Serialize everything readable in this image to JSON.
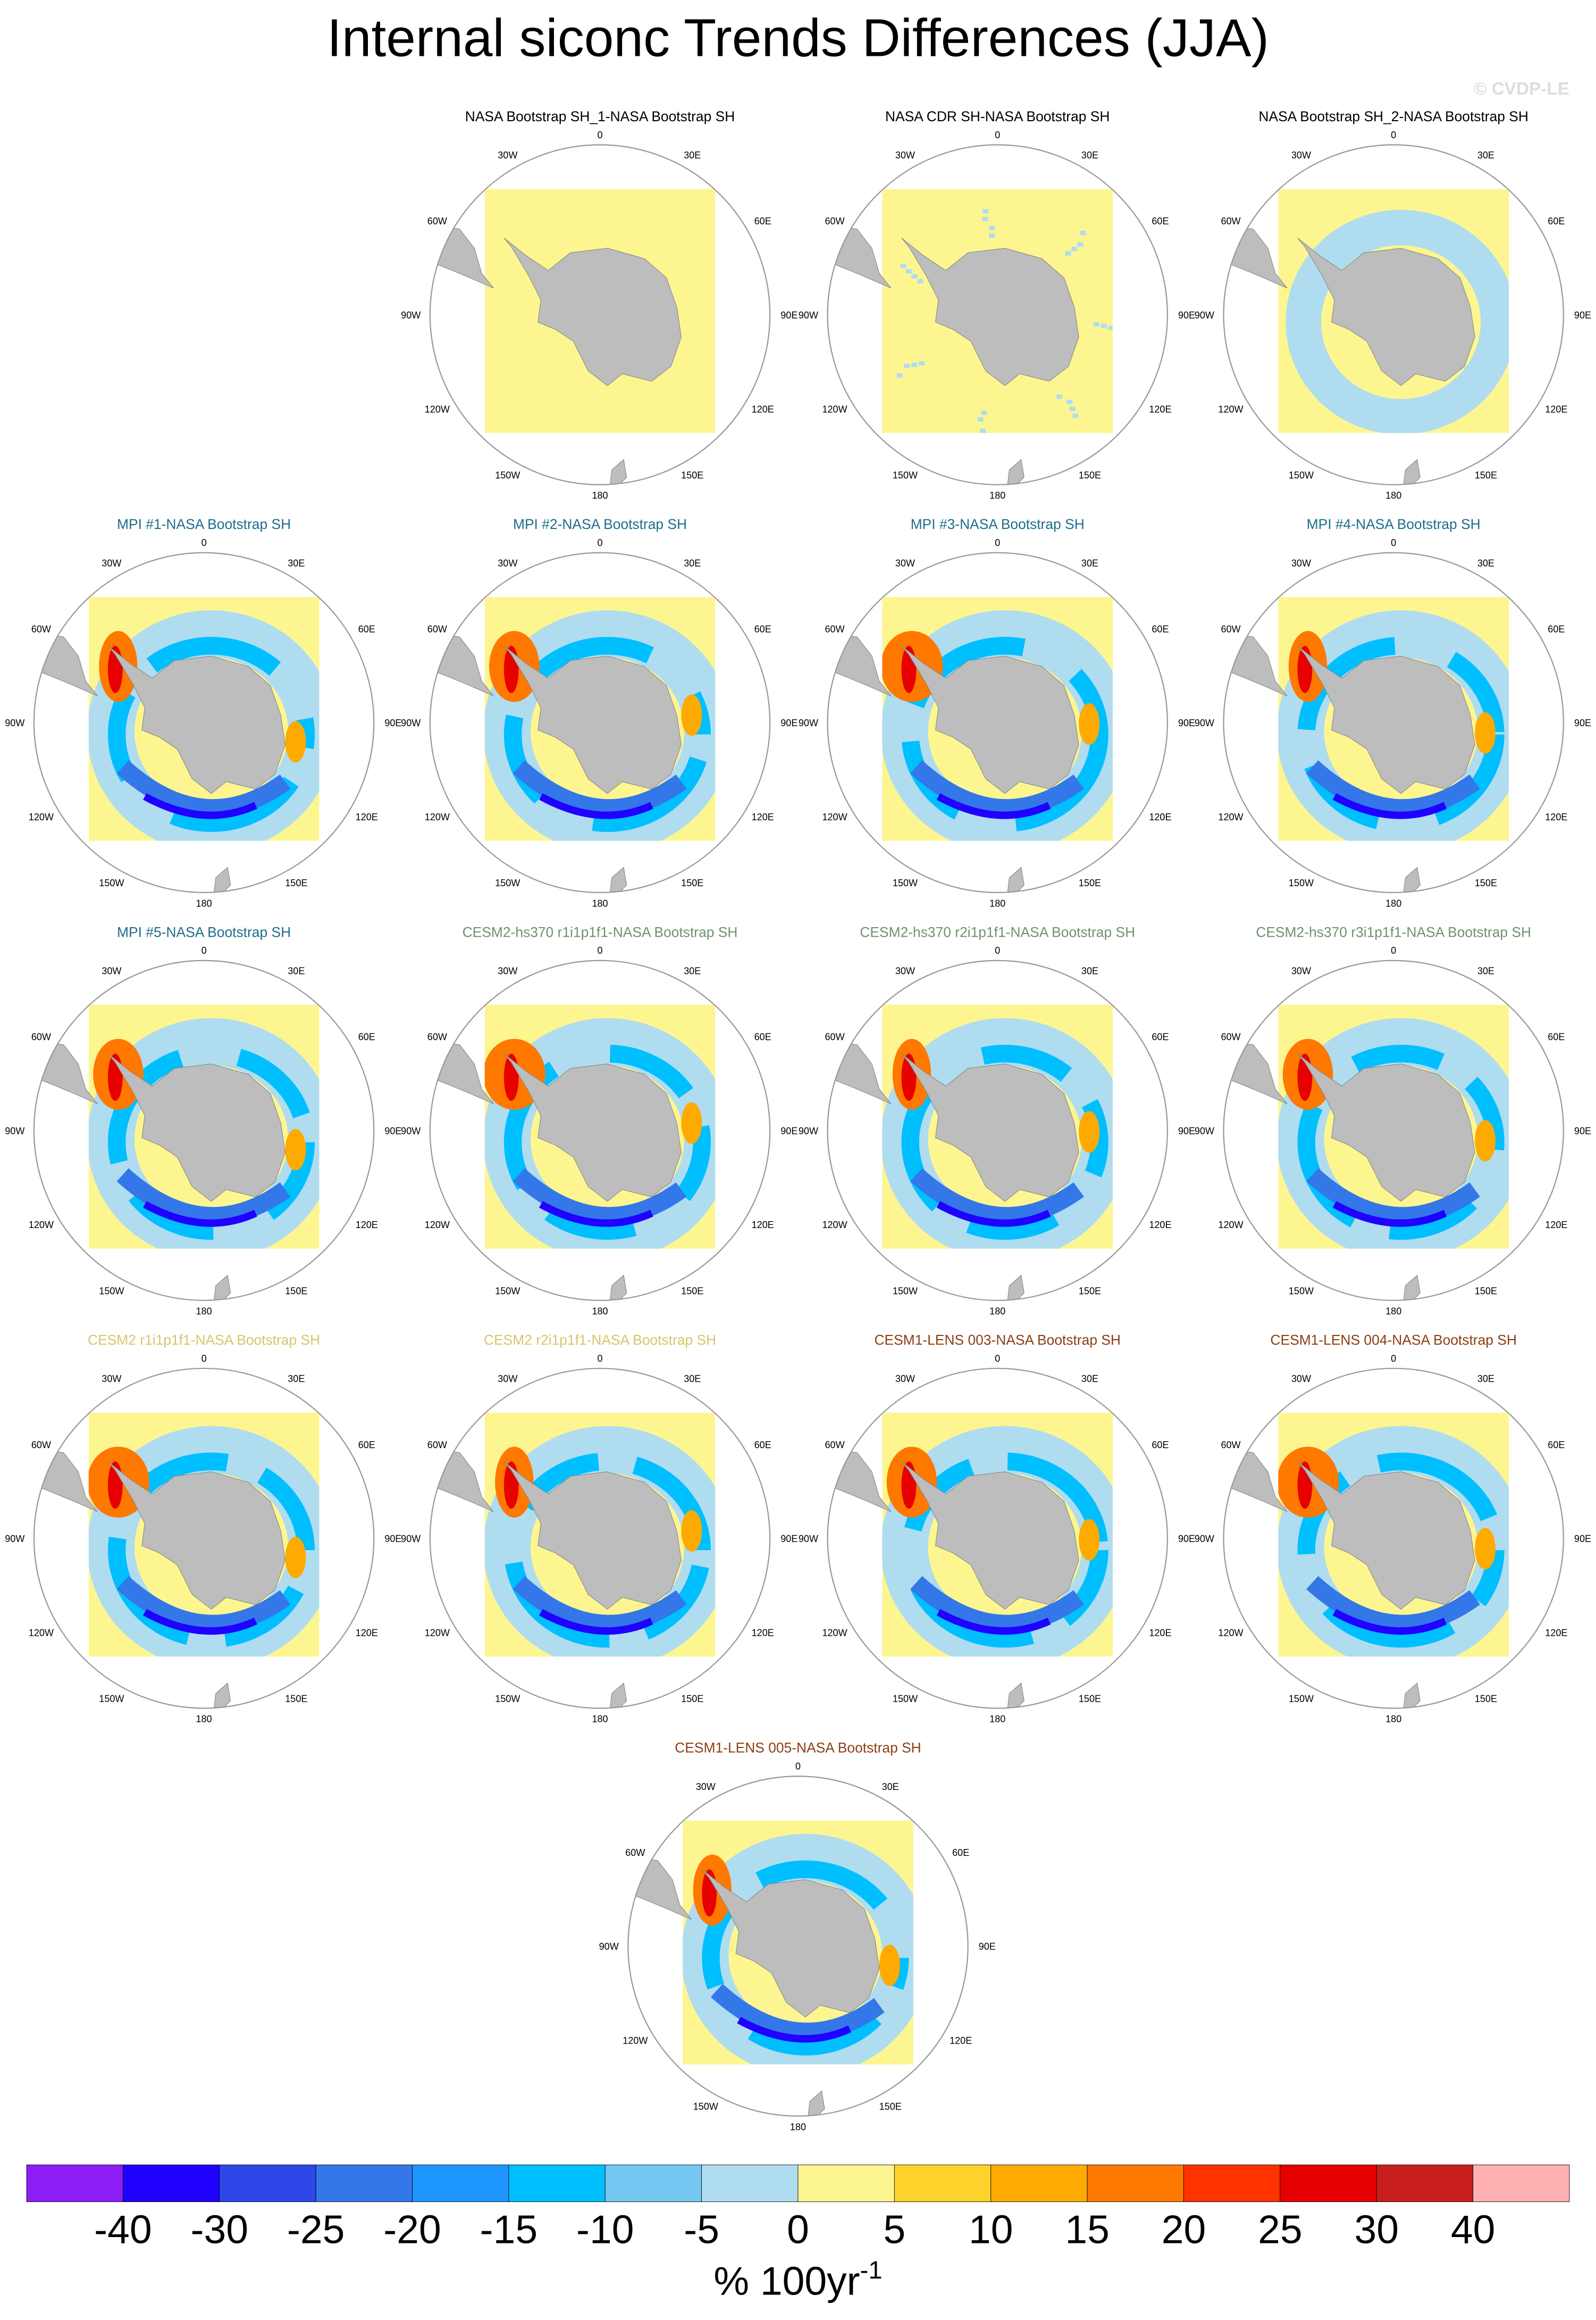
{
  "title": "Internal siconc Trends Differences (JJA)",
  "watermark": "© CVDP-LE",
  "panels": [
    {
      "title": "NASA Bootstrap SH_1-NASA Bootstrap SH",
      "title_color": "#000000"
    },
    {
      "title": "NASA CDR SH-NASA Bootstrap SH",
      "title_color": "#000000"
    },
    {
      "title": "NASA Bootstrap SH_2-NASA Bootstrap SH",
      "title_color": "#000000"
    },
    {
      "title": "MPI #1-NASA Bootstrap SH",
      "title_color": "#1c6e8c"
    },
    {
      "title": "MPI #2-NASA Bootstrap SH",
      "title_color": "#1c6e8c"
    },
    {
      "title": "MPI #3-NASA Bootstrap SH",
      "title_color": "#1c6e8c"
    },
    {
      "title": "MPI #4-NASA Bootstrap SH",
      "title_color": "#1c6e8c"
    },
    {
      "title": "MPI #5-NASA Bootstrap SH",
      "title_color": "#1c6e8c"
    },
    {
      "title": "CESM2-hs370 r1i1p1f1-NASA Bootstrap SH",
      "title_color": "#6f9270"
    },
    {
      "title": "CESM2-hs370 r2i1p1f1-NASA Bootstrap SH",
      "title_color": "#6f9270"
    },
    {
      "title": "CESM2-hs370 r3i1p1f1-NASA Bootstrap SH",
      "title_color": "#6f9270"
    },
    {
      "title": "CESM2 r1i1p1f1-NASA Bootstrap SH",
      "title_color": "#d8c56c"
    },
    {
      "title": "CESM2 r2i1p1f1-NASA Bootstrap SH",
      "title_color": "#d8c56c"
    },
    {
      "title": "CESM1-LENS 003-NASA Bootstrap SH",
      "title_color": "#8b3f12"
    },
    {
      "title": "CESM1-LENS 004-NASA Bootstrap SH",
      "title_color": "#8b3f12"
    },
    {
      "title": "CESM1-LENS 005-NASA Bootstrap SH",
      "title_color": "#8b3f12"
    }
  ],
  "longitude_labels": [
    "0",
    "30E",
    "60E",
    "90E",
    "120E",
    "150E",
    "180",
    "150W",
    "120W",
    "90W",
    "60W",
    "30W"
  ],
  "colorbar": {
    "colors": [
      "#8c1df5",
      "#2000ff",
      "#2e46e8",
      "#3377e8",
      "#1e96ff",
      "#00bfff",
      "#74c8f2",
      "#b0dcf0",
      "#fdf690",
      "#fdd22b",
      "#ffaa00",
      "#ff7800",
      "#ff3200",
      "#e60000",
      "#c81e1e",
      "#ffb0b0"
    ],
    "levels": [
      -40,
      -30,
      -25,
      -20,
      -15,
      -10,
      -5,
      0,
      5,
      10,
      15,
      20,
      25,
      30,
      40
    ],
    "label": "% 100yr",
    "label_exponent": "-1"
  }
}
